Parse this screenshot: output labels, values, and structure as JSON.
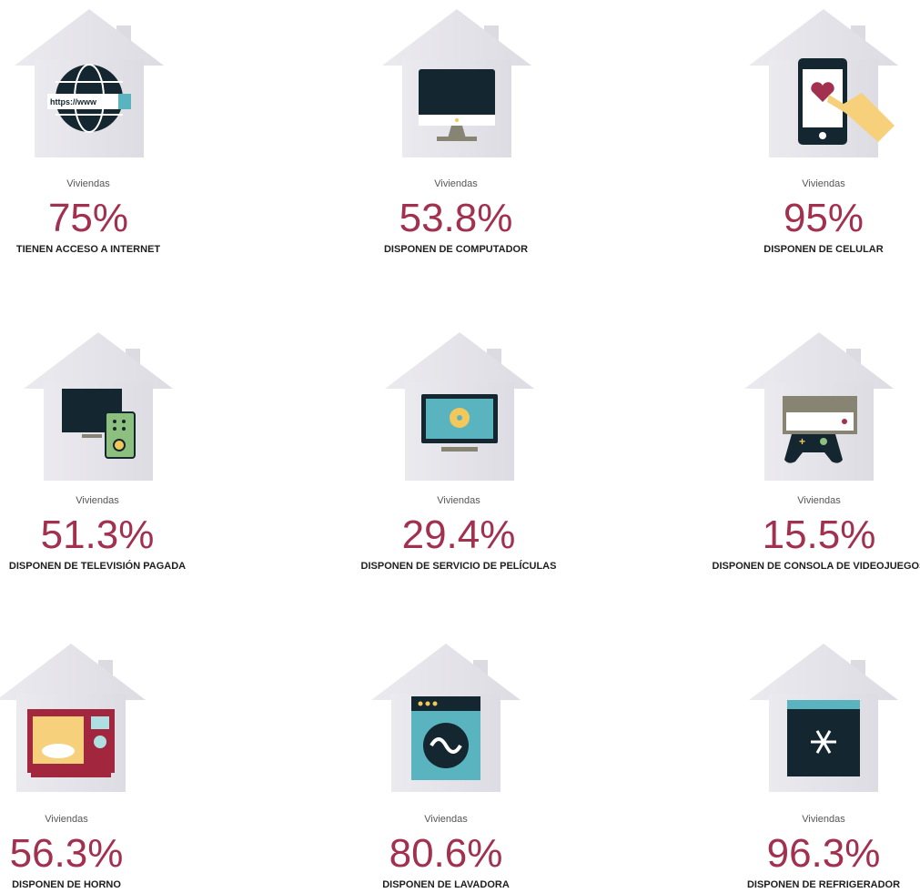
{
  "items": [
    {
      "pre": "Viviendas",
      "value": "75%",
      "label": "TIENEN ACCESO A INTERNET",
      "icon_text": "https://www"
    },
    {
      "pre": "Viviendas",
      "value": "53.8%",
      "label": "DISPONEN DE COMPUTADOR"
    },
    {
      "pre": "Viviendas",
      "value": "95%",
      "label": "DISPONEN DE CELULAR"
    },
    {
      "pre": "Viviendas",
      "value": "51.3%",
      "label": "DISPONEN DE TELEVISIÓN PAGADA"
    },
    {
      "pre": "Viviendas",
      "value": "29.4%",
      "label": "DISPONEN DE SERVICIO DE PELÍCULAS"
    },
    {
      "pre": "Viviendas",
      "value": "15.5%",
      "label": "DISPONEN DE CONSOLA DE VIDEOJUEGOS"
    },
    {
      "pre": "Viviendas",
      "value": "56.3%",
      "label": "DISPONEN DE HORNO"
    },
    {
      "pre": "Viviendas",
      "value": "80.6%",
      "label": "DISPONEN DE LAVADORA"
    },
    {
      "pre": "Viviendas",
      "value": "96.3%",
      "label": "DISPONEN DE REFRIGERADOR"
    }
  ]
}
